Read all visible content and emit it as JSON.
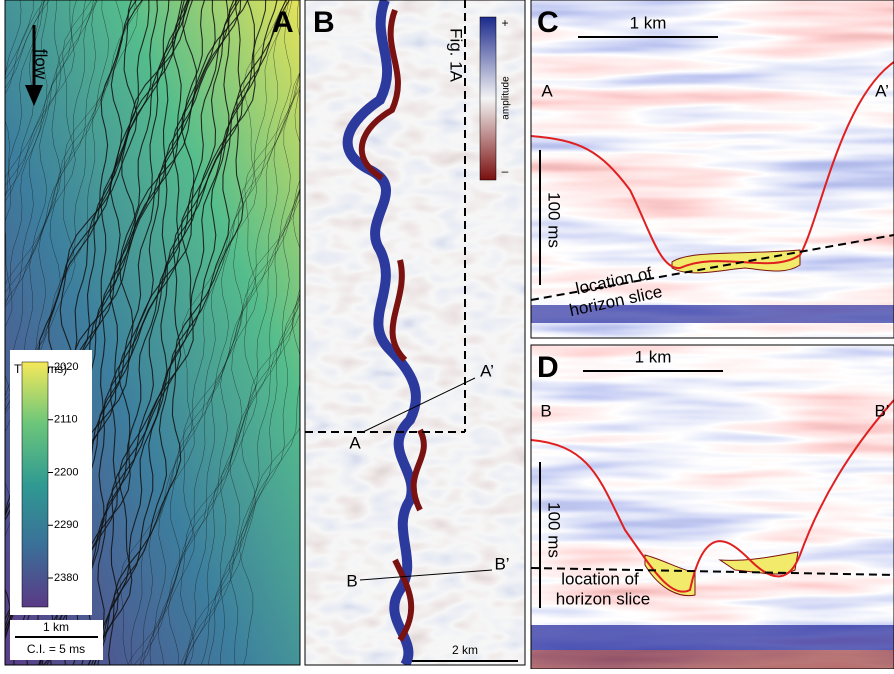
{
  "panel_a": {
    "label": "A",
    "flow": "flow",
    "colorbar_title": "TWT (ms)",
    "colorbar_ticks": [
      2020,
      2110,
      2200,
      2290,
      2380
    ],
    "scale": "1 km",
    "contour_interval": "C.I. = 5 ms"
  },
  "panel_b": {
    "label": "B",
    "plus": "+",
    "amplitude": "amplitude",
    "minus": "–",
    "reference": "Fig. 1A",
    "a_start": "A",
    "a_end": "A’",
    "b_start": "B",
    "b_end": "B’",
    "scale": "2 km"
  },
  "panel_c": {
    "label": "C",
    "scale": "1 km",
    "left": "A",
    "right": "A’",
    "time_scale": "100 ms",
    "horizon_line1": "location of",
    "horizon_line2": "horizon slice"
  },
  "panel_d": {
    "label": "D",
    "scale": "1 km",
    "left": "B",
    "right": "B’",
    "time_scale": "100 ms",
    "horizon_line1": "location of",
    "horizon_line2": "horizon slice"
  }
}
